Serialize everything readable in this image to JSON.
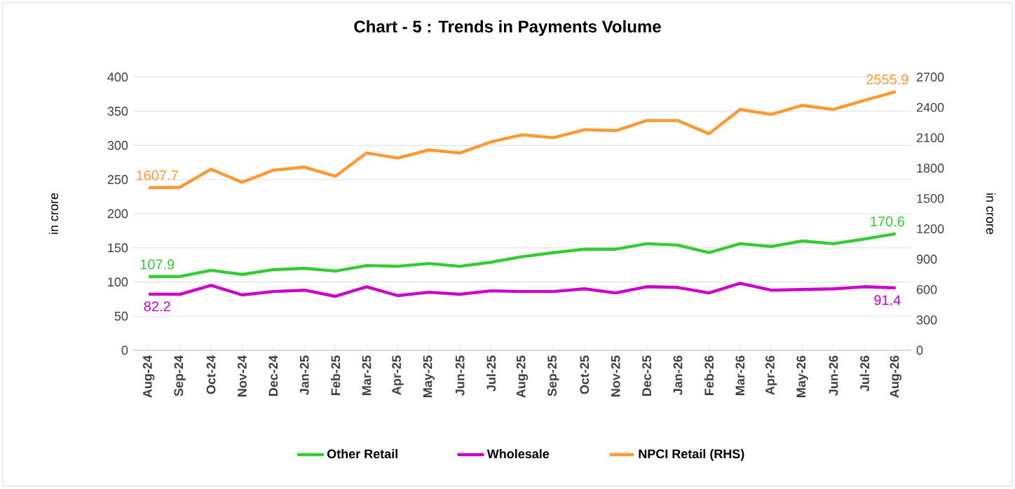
{
  "chart_data": {
    "type": "line",
    "title": "Chart - 5 : Trends in Payments Volume",
    "ylabel": "in crore",
    "y2label": "in crore",
    "categories": [
      "Aug-24",
      "Sep-24",
      "Oct-24",
      "Nov-24",
      "Dec-24",
      "Jan-25",
      "Feb-25",
      "Mar-25",
      "Apr-25",
      "May-25",
      "Jun-25",
      "Jul-25",
      "Aug-25",
      "Sep-25",
      "Oct-25",
      "Nov-25",
      "Dec-25",
      "Jan-26",
      "Feb-26",
      "Mar-26",
      "Apr-26",
      "May-26",
      "Jun-26",
      "Jul-26",
      "Aug-26"
    ],
    "series": [
      {
        "name": "Other Retail",
        "color": "#33cc33",
        "values": [
          107.9,
          108,
          117,
          111,
          118,
          120,
          116,
          124,
          123,
          127,
          123,
          129,
          137,
          143,
          148,
          148,
          156,
          154,
          143,
          156,
          152,
          160,
          156,
          163,
          170.6
        ],
        "value_labels": [
          "107.9",
          null,
          null,
          null,
          null,
          null,
          null,
          null,
          null,
          null,
          null,
          null,
          null,
          null,
          null,
          null,
          null,
          null,
          null,
          null,
          null,
          null,
          null,
          null,
          "170.6"
        ]
      },
      {
        "name": "Wholesale",
        "color": "#cc00cc",
        "values": [
          82.2,
          82,
          95,
          81,
          86,
          88,
          79,
          93,
          80,
          85,
          82,
          87,
          86,
          86,
          90,
          84,
          93,
          92,
          84,
          98,
          88,
          89,
          90,
          93,
          91.4
        ],
        "value_labels": [
          "82.2",
          null,
          null,
          null,
          null,
          null,
          null,
          null,
          null,
          null,
          null,
          null,
          null,
          null,
          null,
          null,
          null,
          null,
          null,
          null,
          null,
          null,
          null,
          null,
          "91.4"
        ]
      },
      {
        "name": "NPCI Retail  (RHS)",
        "color": "#ff9933",
        "axis": "y2",
        "values": [
          1607.7,
          1610,
          1790,
          1660,
          1780,
          1810,
          1720,
          1950,
          1900,
          1980,
          1950,
          2060,
          2130,
          2100,
          2180,
          2170,
          2270,
          2270,
          2140,
          2380,
          2330,
          2420,
          2380,
          2470,
          2555.9
        ],
        "value_labels": [
          "1607.7",
          null,
          null,
          null,
          null,
          null,
          null,
          null,
          null,
          null,
          null,
          null,
          null,
          null,
          null,
          null,
          null,
          null,
          null,
          null,
          null,
          null,
          null,
          null,
          "2555.9"
        ]
      }
    ],
    "ylim": [
      0,
      400
    ],
    "yticks": [
      0,
      50,
      100,
      150,
      200,
      250,
      300,
      350,
      400
    ],
    "y2lim": [
      0,
      2700
    ],
    "y2ticks": [
      0,
      300,
      600,
      900,
      1200,
      1500,
      1800,
      2100,
      2400,
      2700
    ],
    "grid": "y",
    "legend": "bottom",
    "marker": "none",
    "line_style": "solid"
  }
}
